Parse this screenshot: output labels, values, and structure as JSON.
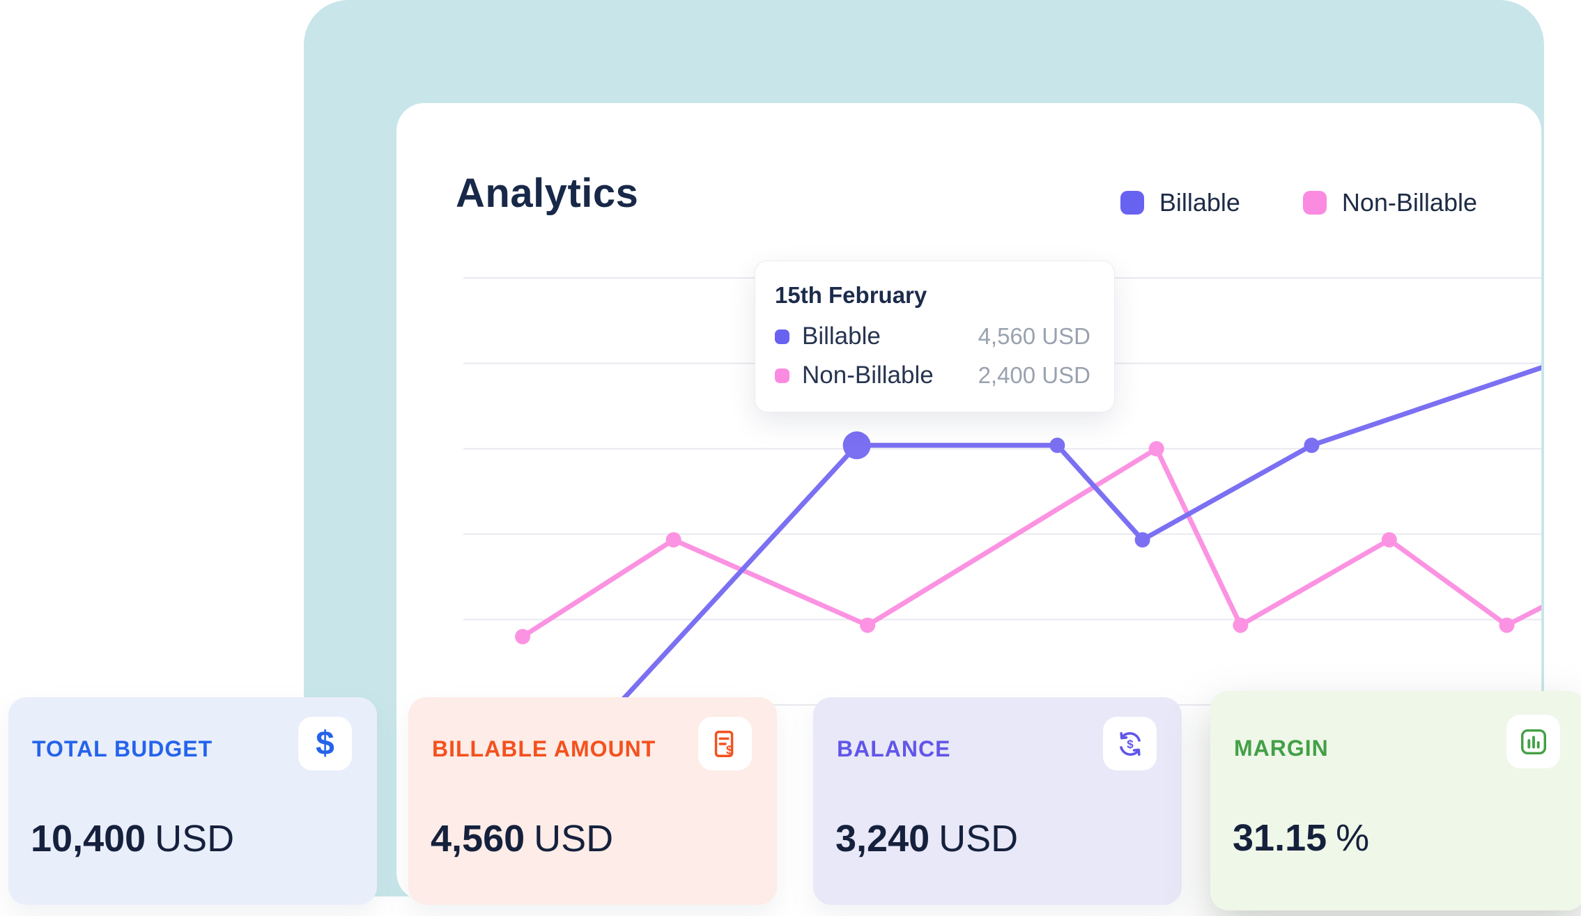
{
  "page": {
    "title": "Analytics"
  },
  "colors": {
    "canvas": "#c8e6ea",
    "card": "#ffffff",
    "grid": "#e8e9ef",
    "title": "#182848"
  },
  "legend": [
    {
      "label": "Billable",
      "color": "#6862f1"
    },
    {
      "label": "Non-Billable",
      "color": "#fb8ae1"
    }
  ],
  "tooltip": {
    "title": "15th February",
    "rows": [
      {
        "label": "Billable",
        "value": "4,560 USD",
        "color": "#6862f1"
      },
      {
        "label": "Non-Billable",
        "value": "2,400 USD",
        "color": "#fb8ae1"
      }
    ]
  },
  "chart_data": {
    "type": "line",
    "title": "Analytics",
    "unit": "USD",
    "ylim": [
      0,
      7500
    ],
    "y_gridlines": [
      0,
      1500,
      3000,
      4500,
      6000,
      7500
    ],
    "legend_position": "top-right",
    "highlight": {
      "series": "Billable",
      "x_label": "15th February",
      "value": 4560
    },
    "series": [
      {
        "name": "Non-Billable",
        "color": "#fb93e2",
        "points": [
          {
            "x": 0.055,
            "value": 1200,
            "dot": true
          },
          {
            "x": 0.195,
            "value": 2900,
            "dot": true
          },
          {
            "x": 0.375,
            "value": 1400,
            "dot": true
          },
          {
            "x": 0.643,
            "value": 4500,
            "dot": true
          },
          {
            "x": 0.721,
            "value": 1400,
            "dot": true
          },
          {
            "x": 0.859,
            "value": 2900,
            "dot": true
          },
          {
            "x": 0.968,
            "value": 1400,
            "dot": true
          },
          {
            "x": 1.04,
            "value": 2100,
            "dot": false
          }
        ]
      },
      {
        "name": "Billable",
        "color": "#7b70f2",
        "points": [
          {
            "x": 0.119,
            "value": -500,
            "dot": false
          },
          {
            "x": 0.365,
            "value": 4560,
            "dot": true,
            "highlight": true
          },
          {
            "x": 0.551,
            "value": 4560,
            "dot": true
          },
          {
            "x": 0.63,
            "value": 2900,
            "dot": true
          },
          {
            "x": 0.787,
            "value": 4560,
            "dot": true
          },
          {
            "x": 1.012,
            "value": 6000,
            "dot": false
          }
        ]
      }
    ]
  },
  "stats": [
    {
      "label": "TOTAL BUDGET",
      "value": "10,400",
      "unit": "USD",
      "icon": "dollar-icon",
      "accent": "#2563eb",
      "bg": "#e9eefb",
      "icon_bg": "#ffffff"
    },
    {
      "label": "BILLABLE AMOUNT",
      "value": "4,560",
      "unit": "USD",
      "icon": "invoice-icon",
      "accent": "#f4511e",
      "bg": "#fdece7",
      "icon_bg": "#ffffff"
    },
    {
      "label": "BALANCE",
      "value": "3,240",
      "unit": "USD",
      "icon": "exchange-icon",
      "accent": "#6156e8",
      "bg": "#e9e8f8",
      "icon_bg": "#ffffff"
    },
    {
      "label": "MARGIN",
      "value": "31.15",
      "unit": "%",
      "icon": "bar-chart-icon",
      "accent": "#43a047",
      "bg": "#eff7e9",
      "icon_bg": "#ffffff"
    }
  ]
}
